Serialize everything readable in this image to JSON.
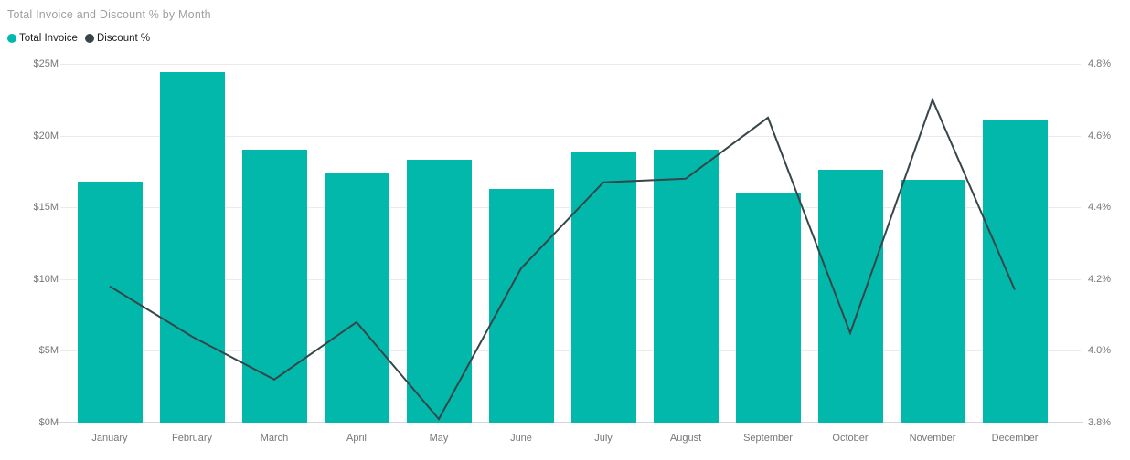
{
  "chart_data": {
    "type": "combo",
    "title": "Total Invoice and Discount % by Month",
    "categories": [
      "January",
      "February",
      "March",
      "April",
      "May",
      "June",
      "July",
      "August",
      "September",
      "October",
      "November",
      "December"
    ],
    "series": [
      {
        "name": "Total Invoice",
        "type": "bar",
        "y_axis": "left",
        "color": "#01b8aa",
        "unit": "$M",
        "values": [
          16.8,
          24.4,
          19.0,
          17.4,
          18.3,
          16.3,
          18.8,
          19.0,
          16.0,
          17.6,
          16.9,
          21.1
        ]
      },
      {
        "name": "Discount %",
        "type": "line",
        "y_axis": "right",
        "color": "#374649",
        "unit": "%",
        "values": [
          4.18,
          4.04,
          3.92,
          4.08,
          3.81,
          4.23,
          4.47,
          4.48,
          4.65,
          4.05,
          4.7,
          4.17
        ]
      }
    ],
    "left_axis": {
      "min": 0,
      "max": 25,
      "tick_labels": [
        "$0M",
        "$5M",
        "$10M",
        "$15M",
        "$20M",
        "$25M"
      ]
    },
    "right_axis": {
      "min": 3.8,
      "max": 4.8,
      "tick_labels": [
        "3.8%",
        "4.0%",
        "4.2%",
        "4.4%",
        "4.6%",
        "4.8%"
      ]
    },
    "grid": true,
    "legend_position": "top-left"
  },
  "colors": {
    "bar": "#01b8aa",
    "line": "#374649",
    "title_text": "#a0a0a0",
    "legend_text": "#212121",
    "axis_text": "#777777",
    "gridline": "#ebebeb",
    "baseline": "#d6d6d6",
    "background": "#ffffff"
  }
}
